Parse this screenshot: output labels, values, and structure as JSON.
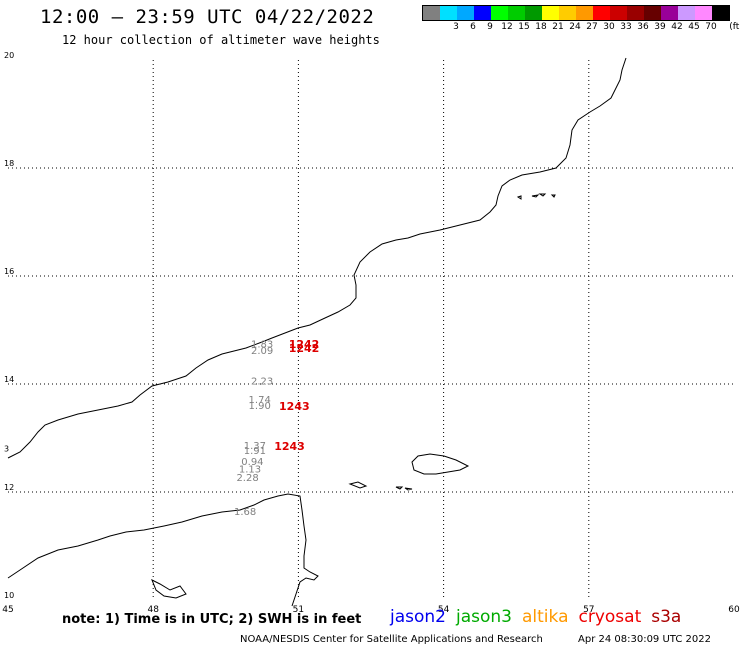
{
  "header": {
    "title": "12:00 – 23:59 UTC 04/22/2022",
    "subtitle": "12 hour collection of altimeter wave heights"
  },
  "legend_scale": {
    "unit": "(ft)",
    "swatches": [
      {
        "color": "#808080",
        "label": ""
      },
      {
        "color": "#00e0ff",
        "label": "3"
      },
      {
        "color": "#00a8ff",
        "label": "6"
      },
      {
        "color": "#0000ff",
        "label": "9"
      },
      {
        "color": "#00ff00",
        "label": "12"
      },
      {
        "color": "#00cc00",
        "label": "15"
      },
      {
        "color": "#009900",
        "label": "18"
      },
      {
        "color": "#ffff00",
        "label": "21"
      },
      {
        "color": "#ffcc00",
        "label": "24"
      },
      {
        "color": "#ff9900",
        "label": "27"
      },
      {
        "color": "#ff0000",
        "label": "30"
      },
      {
        "color": "#cc0000",
        "label": "33"
      },
      {
        "color": "#990000",
        "label": "36"
      },
      {
        "color": "#660000",
        "label": "39"
      },
      {
        "color": "#990099",
        "label": "42"
      },
      {
        "color": "#cc99ff",
        "label": "45"
      },
      {
        "color": "#ff88ff",
        "label": "70"
      },
      {
        "color": "#000000",
        "label": ""
      }
    ]
  },
  "map": {
    "lon_min": 45,
    "lon_max": 60,
    "lat_min": 10,
    "lat_max": 20,
    "lon_ticks": [
      "45",
      "48",
      "51",
      "54",
      "57",
      "60"
    ],
    "lat_ticks": [
      "10",
      "12",
      "14",
      "16",
      "18",
      "20"
    ],
    "extra_lat_label": {
      "lat": 12.75,
      "text": "3"
    },
    "coast_color": "#000000",
    "grid_color": "#000000",
    "swh_color": "#808080",
    "time_color": "#dd0000",
    "swh_readings": [
      {
        "lon": 50.25,
        "lat": 14.68,
        "value": "1.83"
      },
      {
        "lon": 50.25,
        "lat": 14.56,
        "value": "2.09"
      },
      {
        "lon": 50.25,
        "lat": 13.99,
        "value": "2.23"
      },
      {
        "lon": 50.2,
        "lat": 13.65,
        "value": "1.74"
      },
      {
        "lon": 50.2,
        "lat": 13.54,
        "value": "1.90"
      },
      {
        "lon": 50.1,
        "lat": 12.8,
        "value": "1.37"
      },
      {
        "lon": 50.1,
        "lat": 12.7,
        "value": "1.91"
      },
      {
        "lon": 50.05,
        "lat": 12.5,
        "value": "0.94"
      },
      {
        "lon": 50.0,
        "lat": 12.36,
        "value": "1.13"
      },
      {
        "lon": 49.95,
        "lat": 12.2,
        "value": "2.28"
      },
      {
        "lon": 49.9,
        "lat": 11.57,
        "value": "1.68"
      }
    ],
    "time_stamps": [
      {
        "lon": 50.8,
        "lat": 14.67,
        "value": "1242"
      },
      {
        "lon": 50.8,
        "lat": 14.59,
        "value": "1242"
      },
      {
        "lon": 50.6,
        "lat": 13.52,
        "value": "1243"
      },
      {
        "lon": 50.5,
        "lat": 12.78,
        "value": "1243"
      }
    ]
  },
  "footer": {
    "note": "note: 1) Time is in UTC; 2) SWH is in feet",
    "satellites": [
      {
        "name": "jason2",
        "color": "#0000ee"
      },
      {
        "name": "jason3",
        "color": "#00aa00"
      },
      {
        "name": "altika",
        "color": "#ff9900"
      },
      {
        "name": "cryosat",
        "color": "#ee0000"
      },
      {
        "name": "s3a",
        "color": "#aa0000"
      }
    ],
    "credit": "NOAA/NESDIS Center for Satellite Applications and Research",
    "timestamp": "Apr 24 08:30:09 UTC 2022"
  }
}
